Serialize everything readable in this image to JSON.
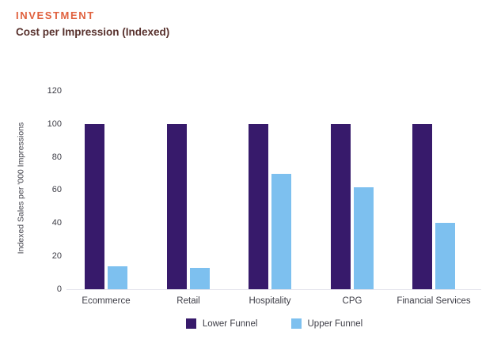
{
  "header": {
    "eyebrow": "INVESTMENT",
    "title": "Cost per Impression (Indexed)"
  },
  "chart_data": {
    "type": "bar",
    "categories": [
      "Ecommerce",
      "Retail",
      "Hospitality",
      "CPG",
      "Financial Services"
    ],
    "series": [
      {
        "name": "Lower Funnel",
        "color": "#371a6b",
        "values": [
          100,
          100,
          100,
          100,
          100
        ]
      },
      {
        "name": "Upper Funnel",
        "color": "#7dc0ef",
        "values": [
          14,
          13,
          70,
          62,
          40
        ]
      }
    ],
    "title": "Cost per Impression (Indexed)",
    "xlabel": "",
    "ylabel": "Indexed Sales per '000 Impressions",
    "yticks": [
      0,
      20,
      40,
      60,
      80,
      100,
      120
    ],
    "ylim": [
      0,
      120
    ],
    "grid": false,
    "legend_position": "bottom"
  },
  "colors": {
    "eyebrow": "#e0613e",
    "title": "#57302c",
    "axis_text": "#3d3d46",
    "baseline": "#e4e4ec",
    "lower_funnel": "#371a6b",
    "upper_funnel": "#7dc0ef"
  }
}
